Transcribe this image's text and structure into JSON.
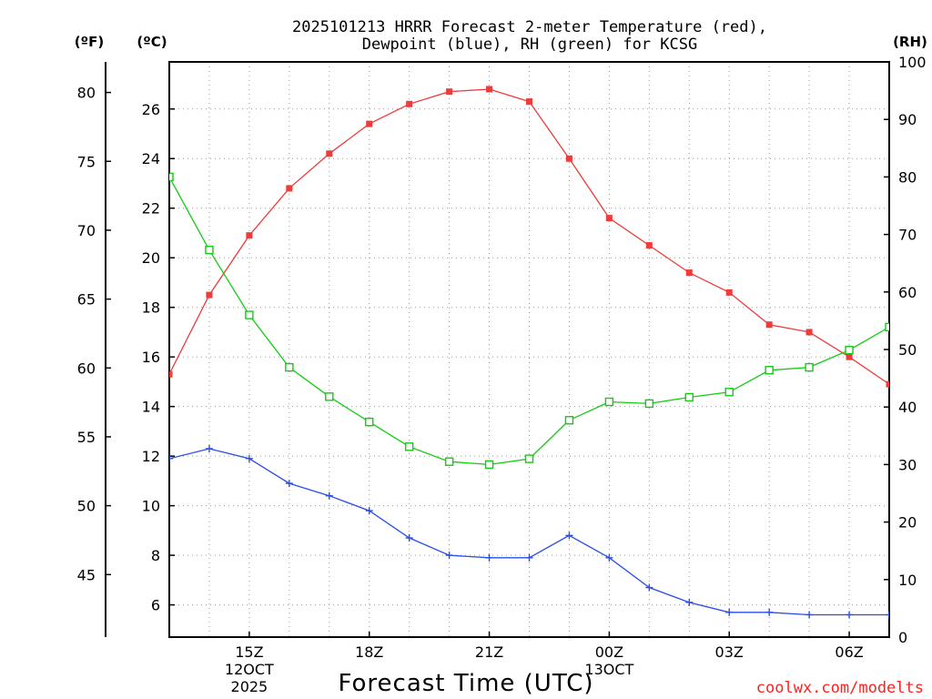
{
  "chart_data": {
    "type": "line",
    "title_line1": "2025101213 HRRR Forecast 2-meter Temperature (red),",
    "title_line2": "Dewpoint (blue), RH (green) for KCSG",
    "xlabel": "Forecast Time (UTC)",
    "credit": "coolwx.com/modelts",
    "unit_f": "(ºF)",
    "unit_c": "(ºC)",
    "unit_rh": "(RH)",
    "x_hours": [
      13,
      14,
      15,
      16,
      17,
      18,
      19,
      20,
      21,
      22,
      23,
      24,
      25,
      26,
      27,
      28,
      29,
      30,
      31
    ],
    "x_ticks": [
      {
        "hour": 15,
        "lines": [
          "15Z",
          "12OCT",
          "2025"
        ]
      },
      {
        "hour": 18,
        "lines": [
          "18Z"
        ]
      },
      {
        "hour": 21,
        "lines": [
          "21Z"
        ]
      },
      {
        "hour": 24,
        "lines": [
          "00Z",
          "13OCT"
        ]
      },
      {
        "hour": 27,
        "lines": [
          "03Z"
        ]
      },
      {
        "hour": 30,
        "lines": [
          "06Z"
        ]
      }
    ],
    "xlim": [
      13,
      31
    ],
    "celsius_range": [
      4.7,
      27.9
    ],
    "celsius_ticks": [
      6,
      8,
      10,
      12,
      14,
      16,
      18,
      20,
      22,
      24,
      26
    ],
    "fahrenheit_ticks": [
      45,
      50,
      55,
      60,
      65,
      70,
      75,
      80
    ],
    "rh_range": [
      0,
      100
    ],
    "rh_ticks": [
      0,
      10,
      20,
      30,
      40,
      50,
      60,
      70,
      80,
      90,
      100
    ],
    "series": [
      {
        "name": "Temperature",
        "unit": "C",
        "color": "#ee3b3b",
        "marker": "filled-square",
        "values": [
          15.3,
          18.5,
          20.9,
          22.8,
          24.2,
          25.4,
          26.2,
          26.7,
          26.8,
          26.3,
          24.0,
          21.6,
          20.5,
          19.4,
          18.6,
          17.3,
          17.0,
          16.0,
          14.9
        ]
      },
      {
        "name": "Dewpoint",
        "unit": "C",
        "color": "#2a4de8",
        "marker": "plus",
        "values": [
          11.9,
          12.3,
          11.9,
          10.9,
          10.4,
          9.8,
          8.7,
          8.0,
          7.9,
          7.9,
          8.8,
          7.9,
          6.7,
          6.1,
          5.7,
          5.7,
          5.6,
          5.6,
          5.6
        ]
      },
      {
        "name": "RH",
        "unit": "%",
        "color": "#11cc11",
        "marker": "hollow-square",
        "values": [
          80.0,
          67.3,
          56.0,
          46.9,
          41.8,
          37.4,
          33.1,
          30.5,
          30.0,
          31.0,
          37.7,
          40.9,
          40.6,
          41.7,
          42.6,
          46.4,
          46.9,
          49.9,
          53.9
        ]
      }
    ]
  }
}
